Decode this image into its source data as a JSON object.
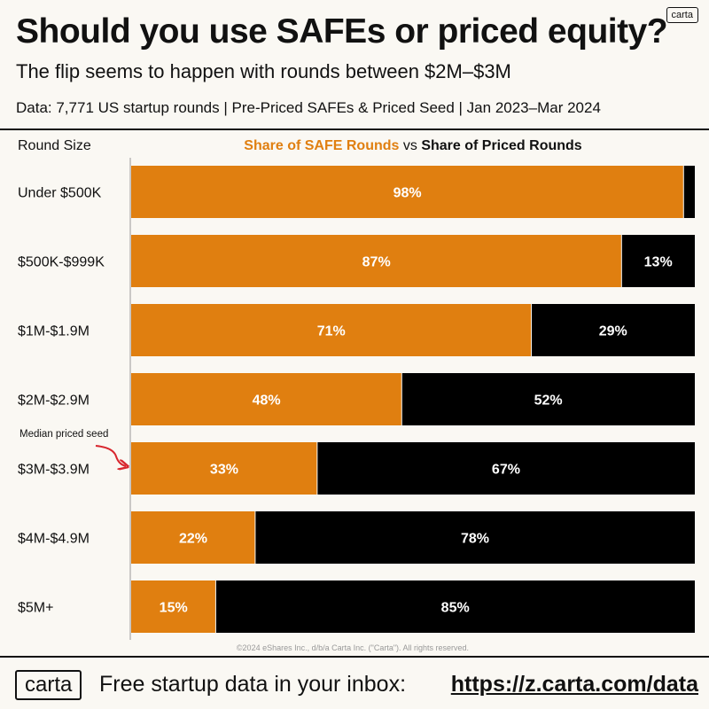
{
  "header": {
    "title": "Should you use SAFEs or priced equity?",
    "subtitle": "The flip seems to happen with rounds between $2M–$3M",
    "source": "Data: 7,771 US startup rounds | Pre-Priced SAFEs & Priced Seed | Jan 2023–Mar 2024",
    "badge": "carta"
  },
  "chart_header": {
    "column_label": "Round Size",
    "legend_safe": "Share of SAFE Rounds",
    "legend_vs": " vs ",
    "legend_priced": "Share of Priced Rounds"
  },
  "annotation": "Median priced seed",
  "copyright": "©2024 eShares Inc., d/b/a Carta Inc. (\"Carta\"). All rights reserved.",
  "colors": {
    "safe": "#e07f10",
    "priced": "#000000",
    "background": "#faf8f3"
  },
  "footer": {
    "logo": "carta",
    "text": "Free startup data in your inbox:",
    "link": "https://z.carta.com/data"
  },
  "chart_data": {
    "type": "bar",
    "orientation": "horizontal",
    "stacked": true,
    "categories": [
      "Under $500K",
      "$500K-$999K",
      "$1M-$1.9M",
      "$2M-$2.9M",
      "$3M-$3.9M",
      "$4M-$4.9M",
      "$5M+"
    ],
    "series": [
      {
        "name": "Share of SAFE Rounds",
        "values": [
          98,
          87,
          71,
          48,
          33,
          22,
          15
        ],
        "labels": [
          "98%",
          "87%",
          "71%",
          "48%",
          "33%",
          "22%",
          "15%"
        ]
      },
      {
        "name": "Share of Priced Rounds",
        "values": [
          2,
          13,
          29,
          52,
          67,
          78,
          85
        ],
        "labels": [
          "",
          "13%",
          "29%",
          "52%",
          "67%",
          "78%",
          "85%"
        ]
      }
    ],
    "xlim": [
      0,
      100
    ],
    "annotated_category": "$3M-$3.9M"
  }
}
